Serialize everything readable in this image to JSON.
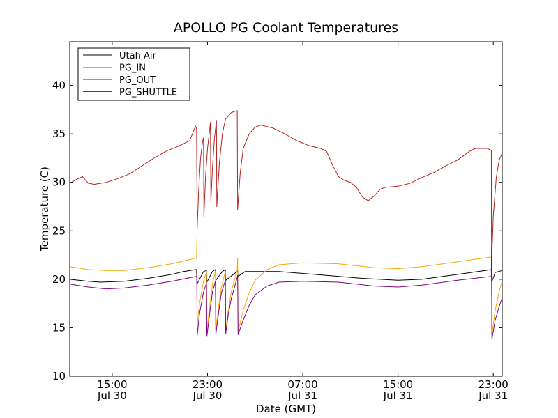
{
  "chart_data": {
    "type": "line",
    "title": "APOLLO PG Coolant Temperatures",
    "xlabel": "Date (GMT)",
    "ylabel": "Temperature (C)",
    "ylim": [
      10,
      44.5
    ],
    "xlim": [
      "07-30 11:26",
      "07-31 23:45"
    ],
    "x_ticks": [
      {
        "time": "07-30 15:00",
        "line1": "15:00",
        "line2": "Jul 30"
      },
      {
        "time": "07-30 23:00",
        "line1": "23:00",
        "line2": "Jul 30"
      },
      {
        "time": "07-31 07:00",
        "line1": "07:00",
        "line2": "Jul 31"
      },
      {
        "time": "07-31 15:00",
        "line1": "15:00",
        "line2": "Jul 31"
      },
      {
        "time": "07-31 23:00",
        "line1": "23:00",
        "line2": "Jul 31"
      }
    ],
    "y_ticks": [
      10,
      15,
      20,
      25,
      30,
      35,
      40
    ],
    "grid": false,
    "legend_position": "top-left",
    "series": [
      {
        "name": "Utah Air",
        "color": "#000000",
        "points": [
          [
            "07-30 11:26",
            20.0
          ],
          [
            "07-30 13:00",
            19.8
          ],
          [
            "07-30 14:00",
            19.7
          ],
          [
            "07-30 16:00",
            19.8
          ],
          [
            "07-30 18:00",
            20.1
          ],
          [
            "07-30 20:00",
            20.5
          ],
          [
            "07-30 21:00",
            20.8
          ],
          [
            "07-30 22:00",
            21.0
          ],
          [
            "07-30 22:05",
            21.0
          ],
          [
            "07-30 22:07",
            19.5
          ],
          [
            "07-30 22:40",
            20.8
          ],
          [
            "07-30 22:55",
            20.9
          ],
          [
            "07-30 22:57",
            19.7
          ],
          [
            "07-30 23:25",
            20.8
          ],
          [
            "07-30 23:40",
            21.0
          ],
          [
            "07-30 23:42",
            19.9
          ],
          [
            "07-31 00:15",
            20.8
          ],
          [
            "07-31 00:30",
            21.0
          ],
          [
            "07-31 00:32",
            19.9
          ],
          [
            "07-31 01:30",
            20.8
          ],
          [
            "07-31 01:32",
            20.9
          ],
          [
            "07-31 01:34",
            20.3
          ],
          [
            "07-31 02:10",
            20.8
          ],
          [
            "07-31 05:00",
            20.8
          ],
          [
            "07-31 08:00",
            20.5
          ],
          [
            "07-31 12:00",
            20.1
          ],
          [
            "07-31 15:00",
            19.9
          ],
          [
            "07-31 17:00",
            20.0
          ],
          [
            "07-31 20:00",
            20.5
          ],
          [
            "07-31 22:50",
            21.0
          ],
          [
            "07-31 22:52",
            19.7
          ],
          [
            "07-31 23:10",
            20.7
          ],
          [
            "07-31 23:45",
            20.9
          ]
        ]
      },
      {
        "name": "PG_IN",
        "color": "#ffa500",
        "points": [
          [
            "07-30 11:26",
            21.3
          ],
          [
            "07-30 13:00",
            21.0
          ],
          [
            "07-30 14:30",
            20.9
          ],
          [
            "07-30 16:00",
            20.9
          ],
          [
            "07-30 18:00",
            21.2
          ],
          [
            "07-30 20:00",
            21.6
          ],
          [
            "07-30 22:05",
            22.2
          ],
          [
            "07-30 22:07",
            24.3
          ],
          [
            "07-30 22:08",
            15.3
          ],
          [
            "07-30 22:20",
            17.5
          ],
          [
            "07-30 22:40",
            19.8
          ],
          [
            "07-30 22:55",
            20.8
          ],
          [
            "07-30 22:57",
            14.7
          ],
          [
            "07-30 23:10",
            17.0
          ],
          [
            "07-30 23:25",
            19.5
          ],
          [
            "07-30 23:40",
            20.8
          ],
          [
            "07-30 23:42",
            14.9
          ],
          [
            "07-30 23:55",
            17.0
          ],
          [
            "07-31 00:10",
            19.2
          ],
          [
            "07-31 00:30",
            20.8
          ],
          [
            "07-31 00:32",
            14.8
          ],
          [
            "07-31 00:45",
            16.8
          ],
          [
            "07-31 01:00",
            18.7
          ],
          [
            "07-31 01:30",
            21.0
          ],
          [
            "07-31 01:32",
            22.2
          ],
          [
            "07-31 01:34",
            14.6
          ],
          [
            "07-31 02:00",
            16.8
          ],
          [
            "07-31 02:30",
            18.6
          ],
          [
            "07-31 03:00",
            19.9
          ],
          [
            "07-31 04:00",
            21.0
          ],
          [
            "07-31 05:00",
            21.5
          ],
          [
            "07-31 07:00",
            21.7
          ],
          [
            "07-31 10:00",
            21.6
          ],
          [
            "07-31 13:00",
            21.2
          ],
          [
            "07-31 15:00",
            21.1
          ],
          [
            "07-31 17:00",
            21.3
          ],
          [
            "07-31 20:00",
            21.8
          ],
          [
            "07-31 22:50",
            22.3
          ],
          [
            "07-31 22:51",
            24.5
          ],
          [
            "07-31 22:53",
            14.3
          ],
          [
            "07-31 23:10",
            16.8
          ],
          [
            "07-31 23:30",
            18.8
          ],
          [
            "07-31 23:45",
            19.8
          ]
        ]
      },
      {
        "name": "PG_OUT",
        "color": "#800080",
        "points": [
          [
            "07-30 11:26",
            19.5
          ],
          [
            "07-30 13:00",
            19.2
          ],
          [
            "07-30 14:30",
            19.0
          ],
          [
            "07-30 16:00",
            19.1
          ],
          [
            "07-30 18:00",
            19.4
          ],
          [
            "07-30 20:00",
            19.8
          ],
          [
            "07-30 22:05",
            20.3
          ],
          [
            "07-30 22:06",
            20.6
          ],
          [
            "07-30 22:08",
            14.2
          ],
          [
            "07-30 22:20",
            16.5
          ],
          [
            "07-30 22:40",
            18.7
          ],
          [
            "07-30 22:55",
            19.6
          ],
          [
            "07-30 22:57",
            14.1
          ],
          [
            "07-30 23:10",
            16.3
          ],
          [
            "07-30 23:25",
            18.7
          ],
          [
            "07-30 23:40",
            19.8
          ],
          [
            "07-30 23:42",
            14.3
          ],
          [
            "07-30 23:55",
            16.4
          ],
          [
            "07-31 00:10",
            18.6
          ],
          [
            "07-31 00:30",
            19.9
          ],
          [
            "07-31 00:32",
            14.4
          ],
          [
            "07-31 00:45",
            16.4
          ],
          [
            "07-31 01:00",
            18.0
          ],
          [
            "07-31 01:30",
            20.2
          ],
          [
            "07-31 01:32",
            20.4
          ],
          [
            "07-31 01:34",
            14.3
          ],
          [
            "07-31 02:00",
            15.8
          ],
          [
            "07-31 02:30",
            17.3
          ],
          [
            "07-31 03:00",
            18.4
          ],
          [
            "07-31 04:00",
            19.3
          ],
          [
            "07-31 05:00",
            19.7
          ],
          [
            "07-31 07:00",
            19.8
          ],
          [
            "07-31 10:00",
            19.7
          ],
          [
            "07-31 13:00",
            19.3
          ],
          [
            "07-31 15:00",
            19.2
          ],
          [
            "07-31 17:00",
            19.4
          ],
          [
            "07-31 20:00",
            19.9
          ],
          [
            "07-31 22:50",
            20.3
          ],
          [
            "07-31 22:51",
            23.4
          ],
          [
            "07-31 22:53",
            13.8
          ],
          [
            "07-31 23:10",
            15.8
          ],
          [
            "07-31 23:30",
            17.2
          ],
          [
            "07-31 23:45",
            18.1
          ]
        ]
      },
      {
        "name": "PG_SHUTTLE",
        "color": "#b22222",
        "points": [
          [
            "07-30 11:26",
            29.9
          ],
          [
            "07-30 12:00",
            30.3
          ],
          [
            "07-30 12:30",
            30.6
          ],
          [
            "07-30 13:00",
            29.9
          ],
          [
            "07-30 13:30",
            29.8
          ],
          [
            "07-30 14:30",
            30.0
          ],
          [
            "07-30 15:30",
            30.4
          ],
          [
            "07-30 16:30",
            30.9
          ],
          [
            "07-30 17:30",
            31.7
          ],
          [
            "07-30 18:30",
            32.5
          ],
          [
            "07-30 19:30",
            33.2
          ],
          [
            "07-30 20:30",
            33.7
          ],
          [
            "07-30 21:30",
            34.3
          ],
          [
            "07-30 22:00",
            35.8
          ],
          [
            "07-30 22:05",
            35.5
          ],
          [
            "07-30 22:08",
            25.3
          ],
          [
            "07-30 22:15",
            29.0
          ],
          [
            "07-30 22:25",
            32.5
          ],
          [
            "07-30 22:35",
            34.2
          ],
          [
            "07-30 22:40",
            34.6
          ],
          [
            "07-30 22:42",
            26.4
          ],
          [
            "07-30 22:50",
            30.5
          ],
          [
            "07-30 23:00",
            33.5
          ],
          [
            "07-30 23:15",
            36.2
          ],
          [
            "07-30 23:17",
            28.0
          ],
          [
            "07-30 23:25",
            31.5
          ],
          [
            "07-30 23:35",
            34.5
          ],
          [
            "07-30 23:45",
            36.4
          ],
          [
            "07-30 23:47",
            27.5
          ],
          [
            "07-31 00:00",
            32.0
          ],
          [
            "07-31 00:15",
            35.0
          ],
          [
            "07-31 00:30",
            36.5
          ],
          [
            "07-31 01:00",
            37.2
          ],
          [
            "07-31 01:30",
            37.4
          ],
          [
            "07-31 01:32",
            27.2
          ],
          [
            "07-31 01:45",
            31.0
          ],
          [
            "07-31 02:00",
            33.5
          ],
          [
            "07-31 02:30",
            35.0
          ],
          [
            "07-31 03:00",
            35.7
          ],
          [
            "07-31 03:30",
            35.9
          ],
          [
            "07-31 04:30",
            35.6
          ],
          [
            "07-31 05:30",
            35.0
          ],
          [
            "07-31 06:30",
            34.3
          ],
          [
            "07-31 07:30",
            33.8
          ],
          [
            "07-31 08:30",
            33.5
          ],
          [
            "07-31 09:00",
            33.2
          ],
          [
            "07-31 09:30",
            31.8
          ],
          [
            "07-31 10:00",
            30.6
          ],
          [
            "07-31 10:30",
            30.2
          ],
          [
            "07-31 11:00",
            30.0
          ],
          [
            "07-31 11:30",
            29.5
          ],
          [
            "07-31 12:00",
            28.5
          ],
          [
            "07-31 12:30",
            28.1
          ],
          [
            "07-31 13:00",
            28.6
          ],
          [
            "07-31 13:30",
            29.3
          ],
          [
            "07-31 14:00",
            29.5
          ],
          [
            "07-31 15:00",
            29.6
          ],
          [
            "07-31 16:00",
            29.9
          ],
          [
            "07-31 17:00",
            30.5
          ],
          [
            "07-31 18:00",
            31.0
          ],
          [
            "07-31 19:00",
            31.7
          ],
          [
            "07-31 20:00",
            32.3
          ],
          [
            "07-31 21:00",
            33.2
          ],
          [
            "07-31 21:30",
            33.5
          ],
          [
            "07-31 22:30",
            33.5
          ],
          [
            "07-31 22:50",
            33.3
          ],
          [
            "07-31 22:51",
            24.5
          ],
          [
            "07-31 22:53",
            22.5
          ],
          [
            "07-31 23:00",
            26.5
          ],
          [
            "07-31 23:15",
            30.5
          ],
          [
            "07-31 23:30",
            32.3
          ],
          [
            "07-31 23:45",
            33.0
          ]
        ]
      }
    ]
  }
}
